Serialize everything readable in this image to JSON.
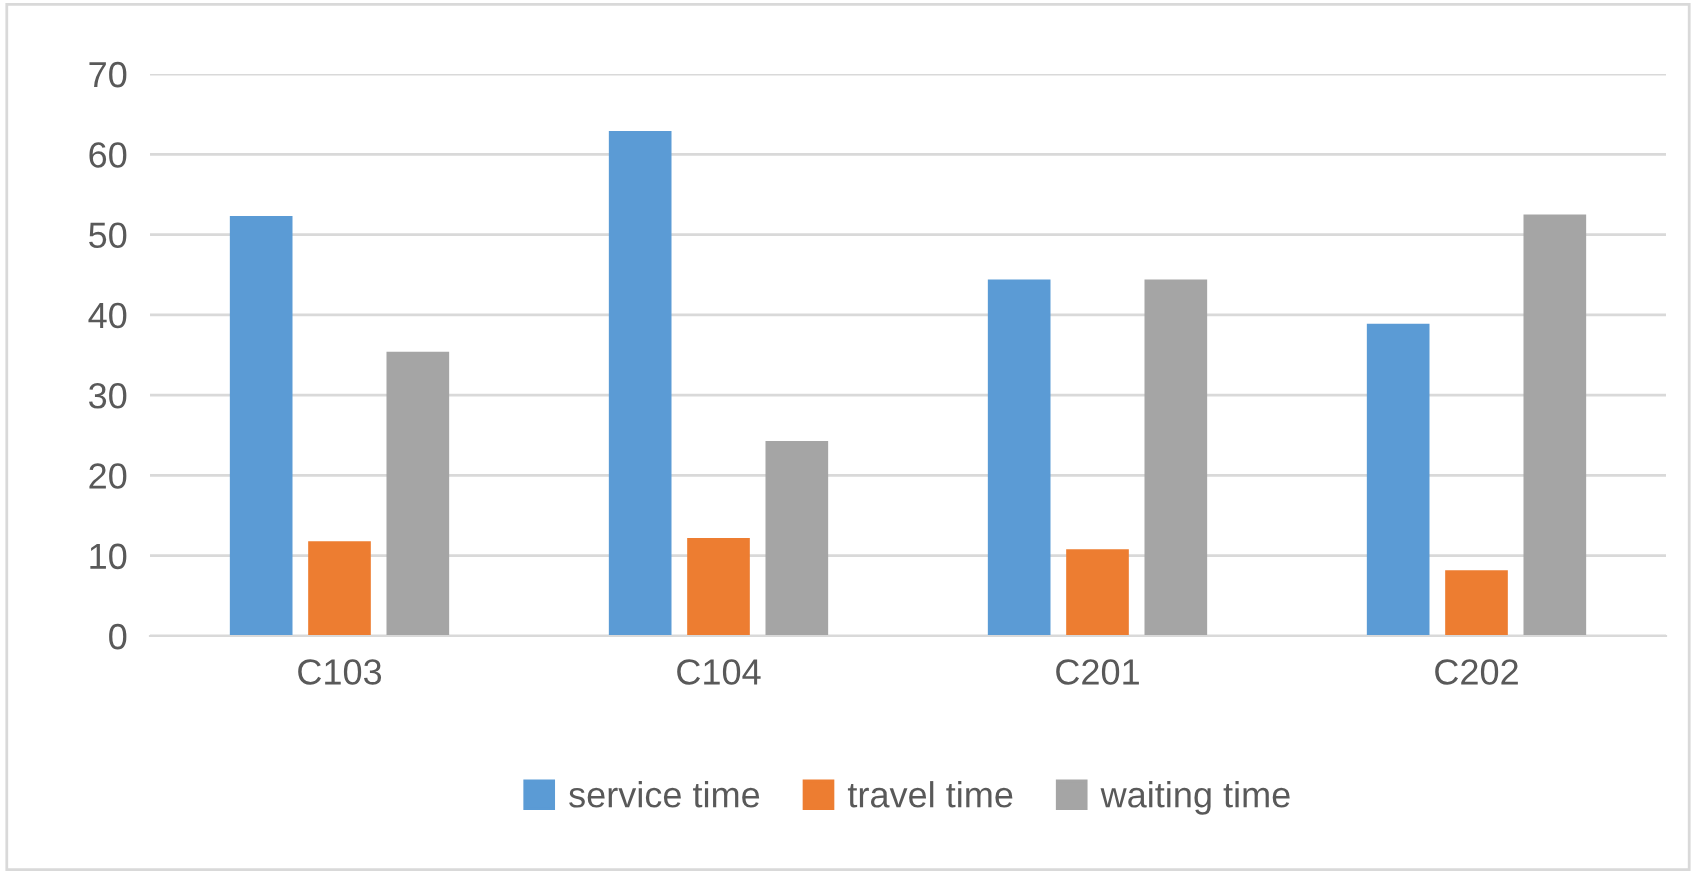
{
  "chart_data": {
    "type": "bar",
    "categories": [
      "C103",
      "C104",
      "C201",
      "C202"
    ],
    "series": [
      {
        "name": "service time",
        "color": "#5b9bd5",
        "values": [
          52.3,
          62.9,
          44.4,
          38.9
        ]
      },
      {
        "name": "travel time",
        "color": "#ed7d31",
        "values": [
          11.8,
          12.2,
          10.8,
          8.2
        ]
      },
      {
        "name": "waiting time",
        "color": "#a5a5a5",
        "values": [
          35.4,
          24.3,
          44.4,
          52.5
        ]
      }
    ],
    "ylim": [
      0,
      70
    ],
    "yticks": [
      0,
      10,
      20,
      30,
      40,
      50,
      60,
      70
    ],
    "grid": "y",
    "legend": "bottom"
  }
}
